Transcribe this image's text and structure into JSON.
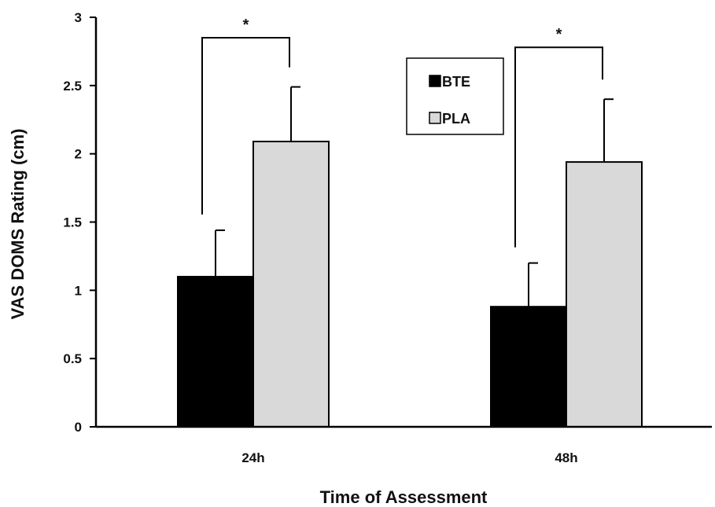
{
  "chart_data": {
    "type": "bar",
    "title": "",
    "xlabel": "Time of Assessment",
    "ylabel": "VAS DOMS Rating (cm)",
    "categories": [
      "24h",
      "48h"
    ],
    "ylim": [
      0,
      3
    ],
    "yticks": [
      {
        "value": 0,
        "label": "0"
      },
      {
        "value": 0.5,
        "label": "0.5"
      },
      {
        "value": 1,
        "label": "1"
      },
      {
        "value": 1.5,
        "label": "1.5"
      },
      {
        "value": 2,
        "label": "2"
      },
      {
        "value": 2.5,
        "label": "2.5"
      },
      {
        "value": 3,
        "label": "3"
      }
    ],
    "series": [
      {
        "name": "BTE",
        "color": "#000000",
        "values": [
          1.1,
          0.88
        ],
        "errors": [
          0.34,
          0.32
        ]
      },
      {
        "name": "PLA",
        "color": "#d9d9d9",
        "values": [
          2.09,
          1.94
        ],
        "errors": [
          0.4,
          0.46
        ]
      }
    ],
    "significance": [
      {
        "category": "24h",
        "label": "*",
        "bracket_y": 2.85
      },
      {
        "category": "48h",
        "label": "*",
        "bracket_y": 2.78
      }
    ],
    "grid": false,
    "legend": {
      "position": "top-center"
    }
  }
}
